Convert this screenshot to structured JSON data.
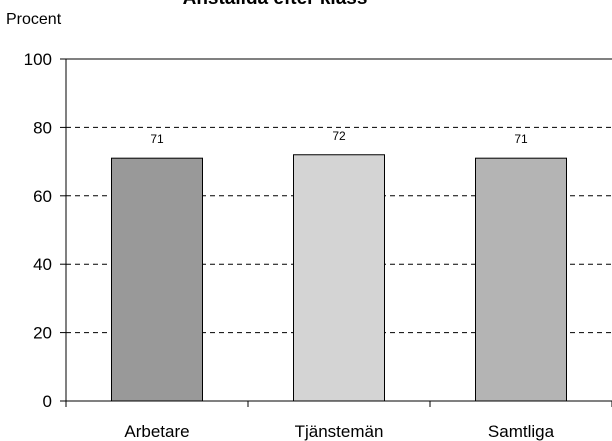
{
  "chart_data": {
    "type": "bar",
    "title": "Anställda efter klass",
    "ylabel": "Procent",
    "xlabel": "",
    "categories": [
      "Arbetare",
      "Tjänstemän",
      "Samtliga"
    ],
    "values": [
      71,
      72,
      71
    ],
    "data_labels": [
      "71",
      "72",
      "71"
    ],
    "colors": [
      "#999999",
      "#d4d4d4",
      "#b4b4b4"
    ],
    "ylim": [
      0,
      100
    ],
    "yticks": [
      0,
      20,
      40,
      60,
      80,
      100
    ],
    "grid": "dashed horizontal",
    "legend": "none"
  }
}
